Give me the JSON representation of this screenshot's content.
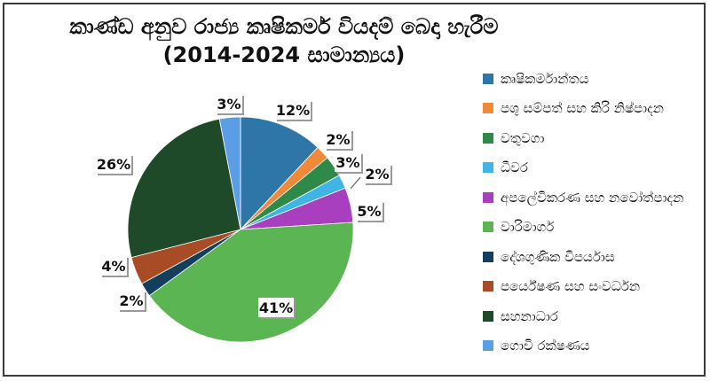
{
  "title_line1": "කාණ්ඩ අනුව රාජ්‍ය කෘෂිකර්ම වියදම් බෙදා හැරීම",
  "title_line2": "(2014-2024 සාමාන්‍යය)",
  "chart_data": {
    "type": "pie",
    "title": "කාණ්ඩ අනුව රාජ්‍ය කෘෂිකර්ම වියදම් බෙදා හැරීම (2014-2024 සාමාන්‍යය)",
    "legend_position": "right",
    "slices": [
      {
        "label": "කෘෂිකර්මාන්තය",
        "value": 12,
        "display": "12%",
        "color": "#2e75a8"
      },
      {
        "label": "පශු සම්පත් සහ කිරි නිෂ්පාදන",
        "value": 2,
        "display": "2%",
        "color": "#f08a3a"
      },
      {
        "label": "වතුවගා",
        "value": 3,
        "display": "3%",
        "color": "#2f8a4a"
      },
      {
        "label": "ධීවර",
        "value": 2,
        "display": "2%",
        "color": "#3fb4e6"
      },
      {
        "label": "අපලේවිකරණ සහ නවෝත්පාදන",
        "value": 5,
        "display": "5%",
        "color": "#a83fbe"
      },
      {
        "label": "වාරිමාර්ග",
        "value": 41,
        "display": "41%",
        "color": "#5ab552"
      },
      {
        "label": "දේශගුණික විපර්යාස",
        "value": 2,
        "display": "2%",
        "color": "#143f5c"
      },
      {
        "label": "පර්යේෂණ සහ සංවර්ධන",
        "value": 4,
        "display": "4%",
        "color": "#a84c26"
      },
      {
        "label": "සහනාධාර",
        "value": 26,
        "display": "26%",
        "color": "#1e4a2a"
      },
      {
        "label": "ගොවි රක්ෂණය",
        "value": 3,
        "display": "3%",
        "color": "#5b9ee6"
      }
    ]
  }
}
